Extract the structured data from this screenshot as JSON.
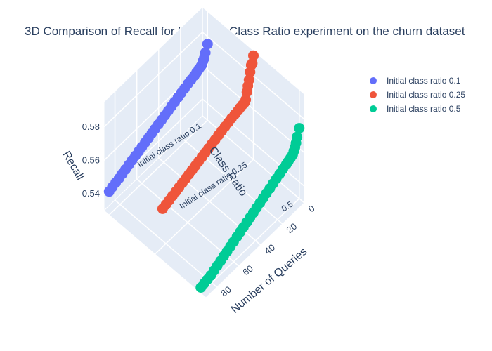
{
  "chart_data": {
    "type": "scatter3d",
    "title": "3D Comparison of Recall for the Initial Class Ratio experiment on the churn dataset",
    "axes": {
      "x": {
        "title": "Number of Queries",
        "ticks": [
          0,
          20,
          40,
          60,
          80
        ],
        "range": [
          0,
          90
        ]
      },
      "y": {
        "title": "Class Ratio",
        "categories": [
          "Initial class ratio 0.1",
          "Initial class ratio 0.25",
          "0.5"
        ]
      },
      "z": {
        "title": "Recall",
        "ticks": [
          0.54,
          0.56,
          0.58
        ],
        "range": [
          0.53,
          0.595
        ]
      }
    },
    "legend": {
      "position": "top-right"
    },
    "colors": {
      "pane": "#e5ecf6",
      "grid": "#ffffff",
      "text": "#2a3f5f"
    },
    "series": [
      {
        "name": "Initial class ratio 0.1",
        "color": "#636efa",
        "points": [
          [
            0,
            0.5755
          ],
          [
            2,
            0.5715
          ],
          [
            3,
            0.569
          ],
          [
            4,
            0.568
          ],
          [
            5,
            0.5665
          ],
          [
            6,
            0.566
          ],
          [
            8,
            0.5655
          ],
          [
            10,
            0.5648
          ],
          [
            12,
            0.5642
          ],
          [
            15,
            0.5636
          ],
          [
            18,
            0.563
          ],
          [
            21,
            0.5622
          ],
          [
            24,
            0.5614
          ],
          [
            27,
            0.5606
          ],
          [
            30,
            0.5598
          ],
          [
            33,
            0.559
          ],
          [
            36,
            0.5582
          ],
          [
            39,
            0.5574
          ],
          [
            42,
            0.5566
          ],
          [
            45,
            0.5558
          ],
          [
            48,
            0.555
          ],
          [
            51,
            0.5542
          ],
          [
            54,
            0.5534
          ],
          [
            57,
            0.5526
          ],
          [
            60,
            0.5518
          ],
          [
            63,
            0.551
          ],
          [
            66,
            0.5502
          ],
          [
            69,
            0.5494
          ],
          [
            72,
            0.5486
          ],
          [
            75,
            0.5478
          ],
          [
            78,
            0.547
          ],
          [
            81,
            0.5462
          ],
          [
            84,
            0.5455
          ],
          [
            87,
            0.5448
          ],
          [
            90,
            0.544
          ]
        ]
      },
      {
        "name": "Initial class ratio 0.25",
        "color": "#ef553b",
        "points": [
          [
            0,
            0.592
          ],
          [
            1,
            0.588
          ],
          [
            2,
            0.5875
          ],
          [
            3,
            0.584
          ],
          [
            4,
            0.58
          ],
          [
            5,
            0.577
          ],
          [
            6,
            0.574
          ],
          [
            7,
            0.57
          ],
          [
            8,
            0.569
          ],
          [
            10,
            0.5688
          ],
          [
            12,
            0.5685
          ],
          [
            14,
            0.568
          ],
          [
            17,
            0.5676
          ],
          [
            20,
            0.5671
          ],
          [
            23,
            0.5665
          ],
          [
            26,
            0.5659
          ],
          [
            29,
            0.5652
          ],
          [
            32,
            0.5645
          ],
          [
            35,
            0.5638
          ],
          [
            38,
            0.5631
          ],
          [
            41,
            0.5624
          ],
          [
            44,
            0.5617
          ],
          [
            47,
            0.561
          ],
          [
            50,
            0.5603
          ],
          [
            53,
            0.5596
          ],
          [
            56,
            0.5589
          ],
          [
            59,
            0.5582
          ],
          [
            62,
            0.5575
          ],
          [
            65,
            0.5568
          ],
          [
            68,
            0.5561
          ],
          [
            71,
            0.5554
          ],
          [
            74,
            0.5547
          ],
          [
            77,
            0.554
          ],
          [
            80,
            0.5533
          ],
          [
            83,
            0.5527
          ]
        ]
      },
      {
        "name": "Initial class ratio 0.5",
        "color": "#00cc96",
        "points": [
          [
            0,
            0.572
          ],
          [
            2,
            0.568
          ],
          [
            3,
            0.565
          ],
          [
            4,
            0.563
          ],
          [
            5,
            0.5615
          ],
          [
            6,
            0.56
          ],
          [
            8,
            0.5592
          ],
          [
            10,
            0.5585
          ],
          [
            12,
            0.5578
          ],
          [
            15,
            0.557
          ],
          [
            18,
            0.556
          ],
          [
            21,
            0.555
          ],
          [
            24,
            0.554
          ],
          [
            27,
            0.553
          ],
          [
            30,
            0.552
          ],
          [
            33,
            0.551
          ],
          [
            36,
            0.55
          ],
          [
            39,
            0.549
          ],
          [
            42,
            0.548
          ],
          [
            45,
            0.547
          ],
          [
            48,
            0.546
          ],
          [
            51,
            0.545
          ],
          [
            54,
            0.544
          ],
          [
            57,
            0.543
          ],
          [
            60,
            0.542
          ],
          [
            63,
            0.541
          ],
          [
            66,
            0.54
          ],
          [
            69,
            0.539
          ],
          [
            72,
            0.538
          ],
          [
            75,
            0.537
          ],
          [
            78,
            0.536
          ],
          [
            81,
            0.535
          ],
          [
            84,
            0.5345
          ],
          [
            87,
            0.534
          ],
          [
            90,
            0.5335
          ]
        ]
      }
    ]
  }
}
